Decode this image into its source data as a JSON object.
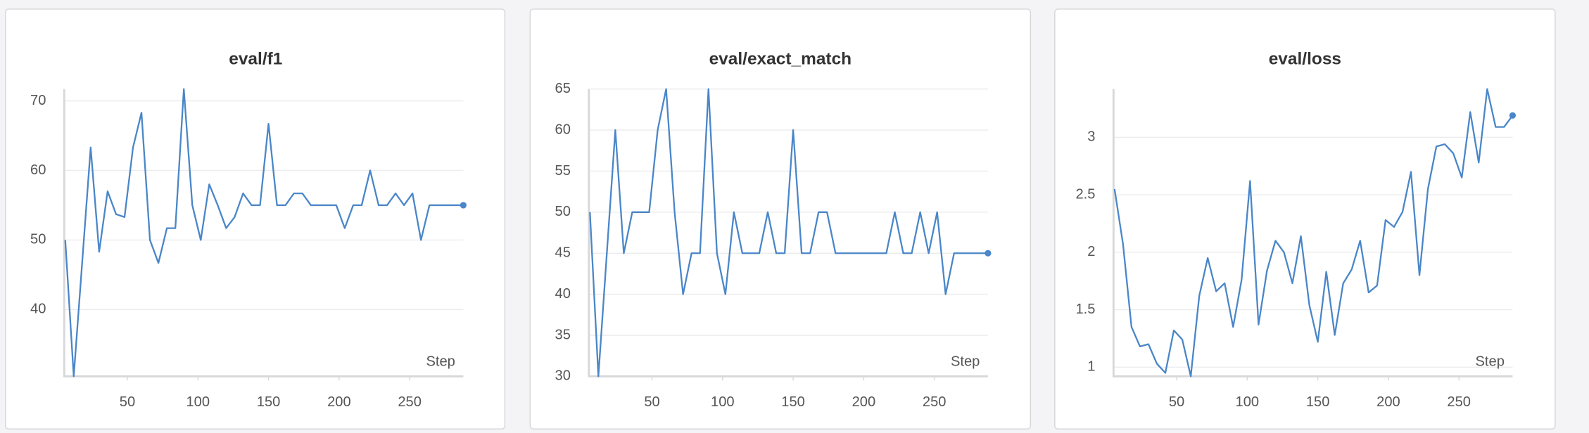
{
  "chart_data": [
    {
      "type": "line",
      "title": "eval/f1",
      "xlabel": "Step",
      "color": "#4a86c8",
      "x": [
        6,
        12,
        18,
        24,
        30,
        36,
        42,
        48,
        54,
        60,
        66,
        72,
        78,
        84,
        90,
        96,
        102,
        108,
        114,
        120,
        126,
        132,
        138,
        144,
        150,
        156,
        162,
        168,
        174,
        180,
        186,
        192,
        198,
        204,
        210,
        216,
        222,
        228,
        234,
        240,
        246,
        252,
        258,
        264,
        270,
        276,
        282,
        288
      ],
      "values": [
        50,
        30.4,
        46.8,
        63.3,
        48.3,
        57,
        53.7,
        53.3,
        63.3,
        68.3,
        50,
        46.7,
        51.7,
        51.7,
        71.7,
        55,
        50,
        58,
        55,
        51.7,
        53.3,
        56.7,
        55,
        55,
        66.7,
        55,
        55,
        56.7,
        56.7,
        55,
        55,
        55,
        55,
        51.7,
        55,
        55,
        60,
        55,
        55,
        56.7,
        55,
        56.7,
        50,
        55,
        55,
        55,
        55,
        55
      ],
      "xlim": [
        6,
        288
      ],
      "xticks": [
        50,
        100,
        150,
        200,
        250
      ],
      "ylim": [
        30.4,
        71.7
      ],
      "yticks": [
        40,
        50,
        60,
        70
      ],
      "grid": true
    },
    {
      "type": "line",
      "title": "eval/exact_match",
      "xlabel": "Step",
      "color": "#4a86c8",
      "x": [
        6,
        12,
        18,
        24,
        30,
        36,
        42,
        48,
        54,
        60,
        66,
        72,
        78,
        84,
        90,
        96,
        102,
        108,
        114,
        120,
        126,
        132,
        138,
        144,
        150,
        156,
        162,
        168,
        174,
        180,
        186,
        192,
        198,
        204,
        210,
        216,
        222,
        228,
        234,
        240,
        246,
        252,
        258,
        264,
        270,
        276,
        282,
        288
      ],
      "values": [
        50,
        30,
        45,
        60,
        45,
        50,
        50,
        50,
        60,
        65,
        50,
        40,
        45,
        45,
        65,
        45,
        40,
        50,
        45,
        45,
        45,
        50,
        45,
        45,
        60,
        45,
        45,
        50,
        50,
        45,
        45,
        45,
        45,
        45,
        45,
        45,
        50,
        45,
        45,
        50,
        45,
        50,
        40,
        45,
        45,
        45,
        45,
        45
      ],
      "xlim": [
        6,
        288
      ],
      "xticks": [
        50,
        100,
        150,
        200,
        250
      ],
      "ylim": [
        30,
        65
      ],
      "yticks": [
        30,
        35,
        40,
        45,
        50,
        55,
        60,
        65
      ],
      "grid": true
    },
    {
      "type": "line",
      "title": "eval/loss",
      "xlabel": "Step",
      "color": "#4a86c8",
      "x": [
        6,
        12,
        18,
        24,
        30,
        36,
        42,
        48,
        54,
        60,
        66,
        72,
        78,
        84,
        90,
        96,
        102,
        108,
        114,
        120,
        126,
        132,
        138,
        144,
        150,
        156,
        162,
        168,
        174,
        180,
        186,
        192,
        198,
        204,
        210,
        216,
        222,
        228,
        234,
        240,
        246,
        252,
        258,
        264,
        270,
        276,
        282,
        288
      ],
      "values": [
        2.55,
        2.07,
        1.35,
        1.18,
        1.2,
        1.03,
        0.95,
        1.32,
        1.24,
        0.92,
        1.62,
        1.95,
        1.66,
        1.73,
        1.35,
        1.76,
        2.62,
        1.37,
        1.84,
        2.1,
        2.0,
        1.73,
        2.14,
        1.54,
        1.22,
        1.83,
        1.28,
        1.73,
        1.85,
        2.1,
        1.65,
        1.71,
        2.28,
        2.22,
        2.35,
        2.7,
        1.8,
        2.55,
        2.92,
        2.94,
        2.86,
        2.65,
        3.22,
        2.78,
        3.42,
        3.09,
        3.09,
        3.19
      ],
      "xlim": [
        6,
        288
      ],
      "xticks": [
        50,
        100,
        150,
        200,
        250
      ],
      "ylim": [
        0.92,
        3.42
      ],
      "yticks": [
        1,
        1.5,
        2,
        2.5,
        3
      ],
      "grid": true
    }
  ]
}
